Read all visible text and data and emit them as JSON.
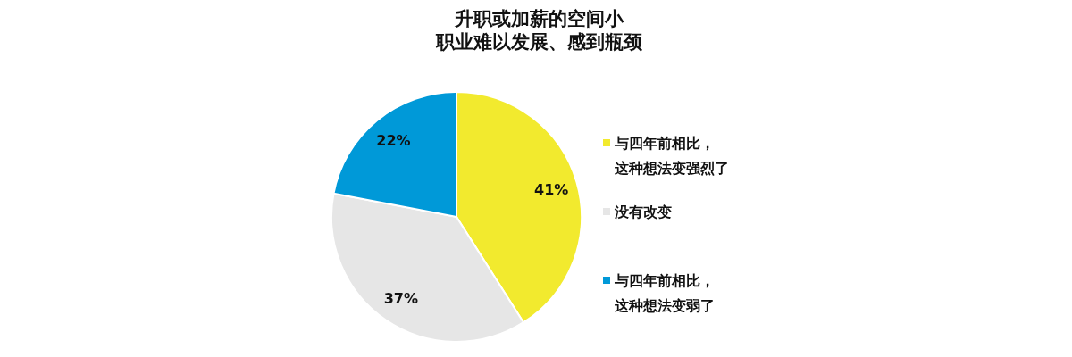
{
  "chart_data": {
    "type": "pie",
    "title": "升职或加薪的空间小职业难以发展、感到瓶颈",
    "categories": [
      "与四年前相比，这种想法变强烈了",
      "没有改变",
      "与四年前相比，这种想法变弱了"
    ],
    "values": [
      41,
      37,
      22
    ],
    "colors": [
      "#f2ea2e",
      "#e6e6e6",
      "#0099d8"
    ],
    "value_labels": [
      "41%",
      "37%",
      "22%"
    ],
    "legend": "right"
  }
}
